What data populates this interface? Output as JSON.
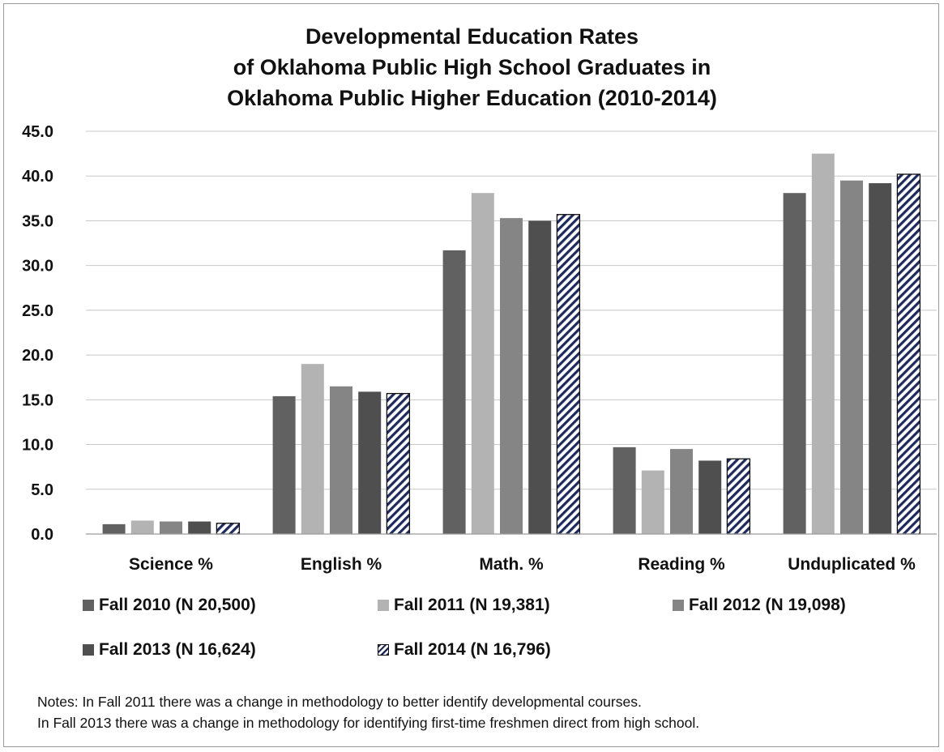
{
  "title_lines": [
    "Developmental Education Rates",
    "of Oklahoma Public High School Graduates in",
    "Oklahoma Public Higher Education (2010-2014)"
  ],
  "chart_data": {
    "type": "bar",
    "title": "Developmental Education Rates of Oklahoma Public High School Graduates in Oklahoma Public Higher Education (2010-2014)",
    "xlabel": "",
    "ylabel": "",
    "ylim": [
      0,
      45
    ],
    "ytick_labels": [
      "0.0",
      "5.0",
      "10.0",
      "15.0",
      "20.0",
      "25.0",
      "30.0",
      "35.0",
      "40.0",
      "45.0"
    ],
    "grid": "horizontal",
    "legend_position": "bottom",
    "categories": [
      "Science %",
      "English %",
      "Math. %",
      "Reading %",
      "Unduplicated %"
    ],
    "series": [
      {
        "name": "Fall 2010 (N 20,500)",
        "values": [
          1.1,
          15.4,
          31.7,
          9.7,
          38.1
        ],
        "color": "#616161",
        "pattern": "solid"
      },
      {
        "name": "Fall 2011 (N 19,381)",
        "values": [
          1.5,
          19.0,
          38.1,
          7.1,
          42.5
        ],
        "color": "#b3b3b3",
        "pattern": "solid"
      },
      {
        "name": "Fall 2012 (N 19,098)",
        "values": [
          1.4,
          16.5,
          35.3,
          9.5,
          39.5
        ],
        "color": "#858585",
        "pattern": "solid"
      },
      {
        "name": "Fall 2013 (N 16,624)",
        "values": [
          1.4,
          15.9,
          35.0,
          8.2,
          39.2
        ],
        "color": "#4f4f4f",
        "pattern": "solid"
      },
      {
        "name": "Fall 2014 (N 16,796)",
        "values": [
          1.2,
          15.7,
          35.7,
          8.4,
          40.2
        ],
        "color": "#1f2a5c",
        "pattern": "diagonal-hatch"
      }
    ]
  },
  "notes": [
    "Notes:  In Fall 2011 there was a change in methodology to better identify developmental courses.",
    "In Fall 2013 there was a change in methodology for identifying first-time freshmen direct from high school."
  ]
}
